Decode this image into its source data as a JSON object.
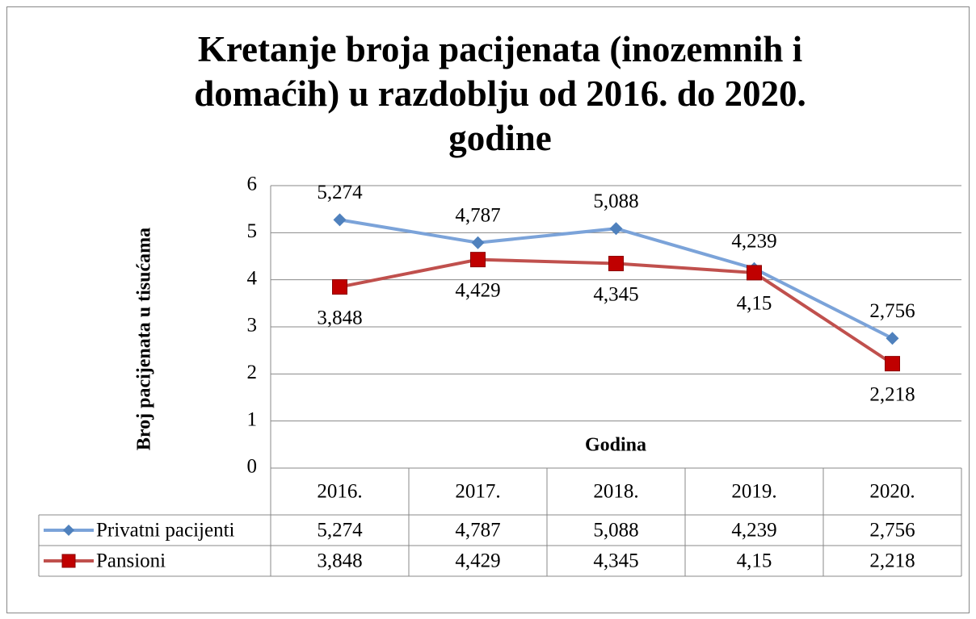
{
  "chart_data": {
    "type": "line",
    "title": "Kretanje broja pacijenata (inozemnih i domaćih) u razdoblju od 2016. do 2020. godine",
    "ylabel": "Broj pacijenata u tisućama",
    "xlabel": "Godina",
    "categories": [
      "2016.",
      "2017.",
      "2018.",
      "2019.",
      "2020."
    ],
    "ylim": [
      0,
      6
    ],
    "yticks": [
      0,
      1,
      2,
      3,
      4,
      5,
      6
    ],
    "grid": true,
    "series": [
      {
        "name": "Privatni pacijenti",
        "color": "#7ba3d9",
        "marker_color": "#4f81bd",
        "marker": "diamond",
        "values": [
          5.274,
          4.787,
          5.088,
          4.239,
          2.756
        ],
        "value_labels": [
          "5,274",
          "4,787",
          "5,088",
          "4,239",
          "2,756"
        ]
      },
      {
        "name": "Pansioni",
        "color": "#c0504d",
        "marker_color": "#c00000",
        "marker": "square",
        "values": [
          3.848,
          4.429,
          4.345,
          4.15,
          2.218
        ],
        "value_labels": [
          "3,848",
          "4,429",
          "4,345",
          "4,15",
          "2,218"
        ]
      }
    ]
  }
}
